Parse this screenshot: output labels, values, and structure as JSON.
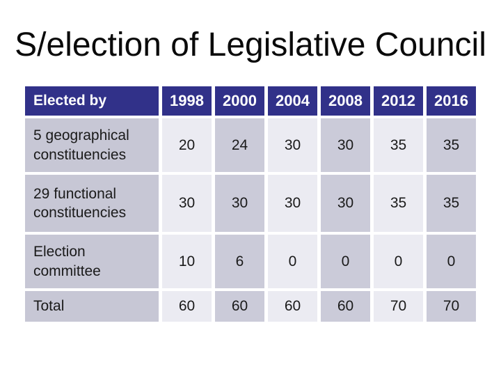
{
  "title": "S/election of Legislative Council",
  "table": {
    "header": {
      "label": "Elected by",
      "years": [
        "1998",
        "2000",
        "2004",
        "2008",
        "2012",
        "2016"
      ]
    },
    "rows": [
      {
        "label": "5 geographical constituencies",
        "values": [
          "20",
          "24",
          "30",
          "30",
          "35",
          "35"
        ]
      },
      {
        "label": "29 functional constituencies",
        "values": [
          "30",
          "30",
          "30",
          "30",
          "35",
          "35"
        ]
      },
      {
        "label": "Election committee",
        "values": [
          "10",
          "6",
          "0",
          "0",
          "0",
          "0"
        ]
      },
      {
        "label": "Total",
        "values": [
          "60",
          "60",
          "60",
          "60",
          "70",
          "70"
        ]
      }
    ]
  },
  "colors": {
    "header_bg": "#313189",
    "header_text": "#ffffff",
    "label_cell_bg": "#c7c7d5",
    "light_cell_bg": "#ebebf2",
    "dark_cell_bg": "#cbcbd9",
    "title_text": "#0a0a0a",
    "body_text": "#1a1a1a",
    "slide_bg": "#ffffff"
  }
}
